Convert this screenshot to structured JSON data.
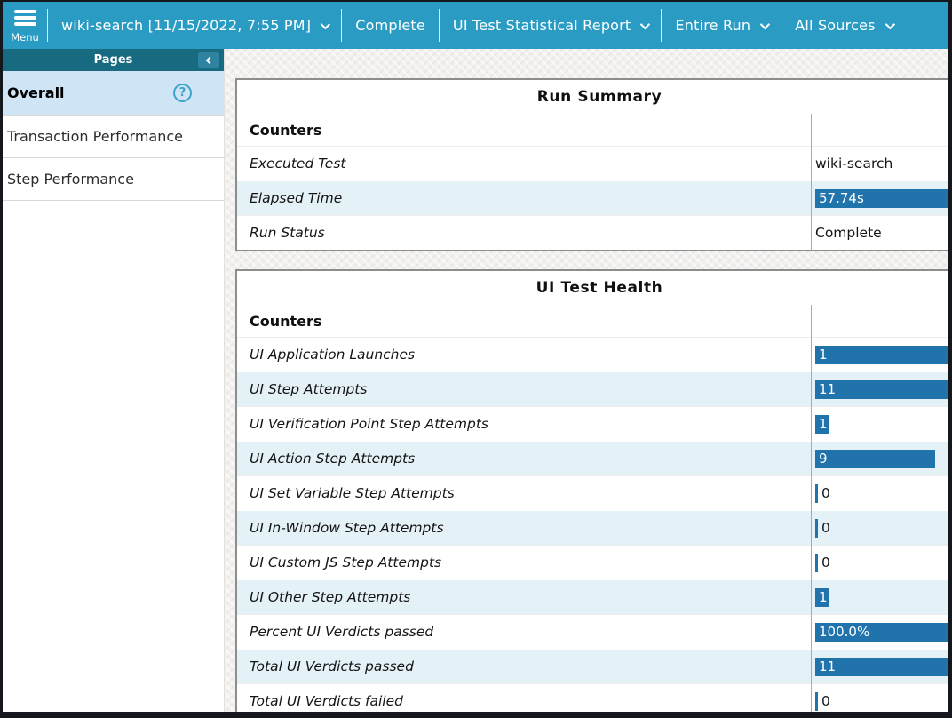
{
  "topbar": {
    "menu": {
      "label": "Menu"
    },
    "items": [
      {
        "label": "wiki-search [11/15/2022, 7:55 PM]",
        "chevron": true
      },
      {
        "label": "Complete",
        "chevron": false
      },
      {
        "label": "UI Test Statistical Report",
        "chevron": true
      },
      {
        "label": "Entire Run",
        "chevron": true
      },
      {
        "label": "All Sources",
        "chevron": true
      }
    ]
  },
  "sidebar": {
    "header": "Pages",
    "items": [
      {
        "label": "Overall",
        "selected": true,
        "has_help": true
      },
      {
        "label": "Transaction Performance",
        "selected": false,
        "has_help": false
      },
      {
        "label": "Step Performance",
        "selected": false,
        "has_help": false
      }
    ]
  },
  "icons": {
    "help": "?"
  },
  "colors": {
    "topbar": "#2a9bc2",
    "sidebar_header": "#176a80",
    "selected_item": "#cfe5f5",
    "bar": "#2173ac",
    "row_stripe": "#e4f1f7",
    "help_icon": "#3aa4cd"
  },
  "tables": [
    {
      "title": "Run Summary",
      "column_header": "Counters",
      "rows": [
        {
          "label": "Executed Test",
          "value": "wiki-search",
          "display": "text",
          "bar_pct": null
        },
        {
          "label": "Elapsed Time",
          "value": "57.74s",
          "display": "bar",
          "bar_pct": 100
        },
        {
          "label": "Run Status",
          "value": "Complete",
          "display": "text",
          "bar_pct": null
        }
      ]
    },
    {
      "title": "UI Test Health",
      "column_header": "Counters",
      "rows": [
        {
          "label": "UI Application Launches",
          "value": "1",
          "display": "bar",
          "bar_pct": 100
        },
        {
          "label": "UI Step Attempts",
          "value": "11",
          "display": "bar",
          "bar_pct": 100
        },
        {
          "label": "UI Verification Point Step Attempts",
          "value": "1",
          "display": "bar",
          "bar_pct": 9
        },
        {
          "label": "UI Action Step Attempts",
          "value": "9",
          "display": "bar",
          "bar_pct": 82
        },
        {
          "label": "UI Set Variable Step Attempts",
          "value": "0",
          "display": "zero",
          "bar_pct": 0
        },
        {
          "label": "UI In-Window Step Attempts",
          "value": "0",
          "display": "zero",
          "bar_pct": 0
        },
        {
          "label": "UI Custom JS Step Attempts",
          "value": "0",
          "display": "zero",
          "bar_pct": 0
        },
        {
          "label": "UI Other Step Attempts",
          "value": "1",
          "display": "bar",
          "bar_pct": 9
        },
        {
          "label": "Percent UI Verdicts passed",
          "value": "100.0%",
          "display": "bar",
          "bar_pct": 100
        },
        {
          "label": "Total UI Verdicts passed",
          "value": "11",
          "display": "bar",
          "bar_pct": 100
        },
        {
          "label": "Total UI Verdicts failed",
          "value": "0",
          "display": "zero",
          "bar_pct": 0
        }
      ]
    }
  ]
}
